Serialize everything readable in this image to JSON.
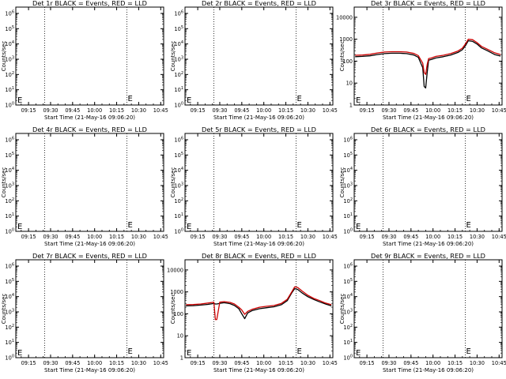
{
  "chart_data": [
    {
      "panel": "det-1r",
      "type": "line",
      "title": "Det 1r BLACK = Events, RED = LLD",
      "xlabel": "Start Time (21-May-16 09:06:20)",
      "ylabel": "Counts/sec",
      "yscale": "log",
      "ylim": [
        1,
        1000000
      ],
      "ytick_labels": [
        "10^0",
        "10^1",
        "10^2",
        "10^3",
        "10^4",
        "10^5",
        "10^6"
      ],
      "xtick_labels": [
        "09:15",
        "09:30",
        "09:45",
        "10:00",
        "10:15",
        "10:30",
        "10:45"
      ],
      "dotted_lines_at": [
        "09:26",
        "10:22"
      ],
      "markers": [
        "E",
        "E"
      ],
      "series": []
    },
    {
      "panel": "det-2r",
      "type": "line",
      "title": "Det 2r BLACK = Events, RED = LLD",
      "xlabel": "Start Time (21-May-16 09:06:20)",
      "ylabel": "Counts/sec",
      "yscale": "log",
      "ylim": [
        1,
        1000000
      ],
      "ytick_labels": [
        "10^0",
        "10^1",
        "10^2",
        "10^3",
        "10^4",
        "10^5",
        "10^6"
      ],
      "xtick_labels": [
        "09:15",
        "09:30",
        "09:45",
        "10:00",
        "10:15",
        "10:30",
        "10:45"
      ],
      "dotted_lines_at": [
        "09:26",
        "10:22"
      ],
      "markers": [
        "E",
        "E"
      ],
      "series": []
    },
    {
      "panel": "det-3r",
      "type": "line",
      "title": "Det 3r BLACK = Events, RED = LLD",
      "xlabel": "Start Time (21-May-16 09:06:20)",
      "ylabel": "Counts/sec",
      "yscale": "log",
      "ylim": [
        1,
        15000
      ],
      "ytick_labels": [
        "1",
        "10",
        "100",
        "1000",
        "10000"
      ],
      "xtick_labels": [
        "09:15",
        "09:30",
        "09:45",
        "10:00",
        "10:15",
        "10:30",
        "10:45"
      ],
      "dotted_lines_at": [
        "09:26",
        "10:22"
      ],
      "markers": [
        "E",
        "E"
      ],
      "series": [
        {
          "color": "#000000",
          "stroke_width": 1.3,
          "x": [
            "09:07",
            "09:12",
            "09:17",
            "09:22",
            "09:27",
            "09:32",
            "09:37",
            "09:42",
            "09:47",
            "09:50",
            "09:53",
            "09:54",
            "09:55",
            "09:56",
            "09:57",
            "09:59",
            "10:02",
            "10:07",
            "10:12",
            "10:17",
            "10:20",
            "10:22",
            "10:24",
            "10:27",
            "10:30",
            "10:33",
            "10:37",
            "10:42",
            "10:46"
          ],
          "y": [
            160,
            165,
            175,
            200,
            220,
            230,
            230,
            220,
            190,
            150,
            50,
            7,
            6,
            30,
            110,
            120,
            140,
            160,
            190,
            250,
            330,
            500,
            850,
            800,
            600,
            400,
            300,
            200,
            170
          ]
        },
        {
          "color": "#cc0000",
          "stroke_width": 1.3,
          "x": [
            "09:07",
            "09:12",
            "09:17",
            "09:22",
            "09:27",
            "09:32",
            "09:37",
            "09:42",
            "09:47",
            "09:50",
            "09:53",
            "09:54",
            "09:55",
            "09:56",
            "09:57",
            "09:59",
            "10:02",
            "10:07",
            "10:12",
            "10:17",
            "10:20",
            "10:22",
            "10:24",
            "10:27",
            "10:30",
            "10:33",
            "10:37",
            "10:42",
            "10:46"
          ],
          "y": [
            185,
            190,
            205,
            235,
            260,
            270,
            270,
            260,
            225,
            180,
            80,
            30,
            25,
            70,
            130,
            140,
            165,
            185,
            220,
            290,
            390,
            600,
            1000,
            950,
            700,
            470,
            350,
            240,
            200
          ]
        }
      ]
    },
    {
      "panel": "det-4r",
      "type": "line",
      "title": "Det 4r BLACK = Events, RED = LLD",
      "xlabel": "Start Time (21-May-16 09:06:20)",
      "ylabel": "Counts/sec",
      "yscale": "log",
      "ylim": [
        1,
        1000000
      ],
      "ytick_labels": [
        "10^0",
        "10^1",
        "10^2",
        "10^3",
        "10^4",
        "10^5",
        "10^6"
      ],
      "xtick_labels": [
        "09:15",
        "09:30",
        "09:45",
        "10:00",
        "10:15",
        "10:30",
        "10:45"
      ],
      "dotted_lines_at": [
        "09:26",
        "10:22"
      ],
      "markers": [
        "E",
        "E"
      ],
      "series": []
    },
    {
      "panel": "det-5r",
      "type": "line",
      "title": "Det 5r BLACK = Events, RED = LLD",
      "xlabel": "Start Time (21-May-16 09:06:20)",
      "ylabel": "Counts/sec",
      "yscale": "log",
      "ylim": [
        1,
        1000000
      ],
      "ytick_labels": [
        "10^0",
        "10^1",
        "10^2",
        "10^3",
        "10^4",
        "10^5",
        "10^6"
      ],
      "xtick_labels": [
        "09:15",
        "09:30",
        "09:45",
        "10:00",
        "10:15",
        "10:30",
        "10:45"
      ],
      "dotted_lines_at": [
        "09:26",
        "10:22"
      ],
      "markers": [
        "E",
        "E"
      ],
      "series": []
    },
    {
      "panel": "det-6r",
      "type": "line",
      "title": "Det 6r BLACK = Events, RED = LLD",
      "xlabel": "Start Time (21-May-16 09:06:20)",
      "ylabel": "Counts/sec",
      "yscale": "log",
      "ylim": [
        1,
        1000000
      ],
      "ytick_labels": [
        "10^0",
        "10^1",
        "10^2",
        "10^3",
        "10^4",
        "10^5",
        "10^6"
      ],
      "xtick_labels": [
        "09:15",
        "09:30",
        "09:45",
        "10:00",
        "10:15",
        "10:30",
        "10:45"
      ],
      "dotted_lines_at": [
        "09:26",
        "10:22"
      ],
      "markers": [
        "E",
        "E"
      ],
      "series": []
    },
    {
      "panel": "det-7r",
      "type": "line",
      "title": "Det 7r BLACK = Events, RED = LLD",
      "xlabel": "Start Time (21-May-16 09:06:20)",
      "ylabel": "Counts/sec",
      "yscale": "log",
      "ylim": [
        1,
        1000000
      ],
      "ytick_labels": [
        "10^0",
        "10^1",
        "10^2",
        "10^3",
        "10^4",
        "10^5",
        "10^6"
      ],
      "xtick_labels": [
        "09:15",
        "09:30",
        "09:45",
        "10:00",
        "10:15",
        "10:30",
        "10:45"
      ],
      "dotted_lines_at": [
        "09:26",
        "10:22"
      ],
      "markers": [
        "E",
        "E"
      ],
      "series": []
    },
    {
      "panel": "det-8r",
      "type": "line",
      "title": "Det 8r BLACK = Events, RED = LLD",
      "xlabel": "Start Time (21-May-16 09:06:20)",
      "ylabel": "Counts/sec",
      "yscale": "log",
      "ylim": [
        1,
        15000
      ],
      "ytick_labels": [
        "1",
        "10",
        "100",
        "1000",
        "10000"
      ],
      "xtick_labels": [
        "09:15",
        "09:30",
        "09:45",
        "10:00",
        "10:15",
        "10:30",
        "10:45"
      ],
      "dotted_lines_at": [
        "09:26",
        "10:22"
      ],
      "markers": [
        "E",
        "E"
      ],
      "series": [
        {
          "color": "#000000",
          "stroke_width": 1.3,
          "x": [
            "09:07",
            "09:12",
            "09:17",
            "09:22",
            "09:25",
            "09:26",
            "09:27",
            "09:28",
            "09:30",
            "09:33",
            "09:37",
            "09:40",
            "09:43",
            "09:45",
            "09:47",
            "09:49",
            "09:52",
            "09:57",
            "10:02",
            "10:07",
            "10:12",
            "10:16",
            "10:19",
            "10:21",
            "10:23",
            "10:26",
            "10:30",
            "10:34",
            "10:38",
            "10:42",
            "10:46"
          ],
          "y": [
            230,
            235,
            250,
            270,
            290,
            300,
            280,
            280,
            300,
            320,
            290,
            240,
            170,
            100,
            60,
            110,
            140,
            170,
            190,
            210,
            260,
            400,
            900,
            1400,
            1300,
            900,
            600,
            450,
            350,
            280,
            230
          ]
        },
        {
          "color": "#cc0000",
          "stroke_width": 1.3,
          "x": [
            "09:07",
            "09:12",
            "09:17",
            "09:22",
            "09:25",
            "09:26",
            "09:27",
            "09:28",
            "09:30",
            "09:33",
            "09:37",
            "09:40",
            "09:43",
            "09:45",
            "09:47",
            "09:49",
            "09:52",
            "09:57",
            "10:02",
            "10:07",
            "10:12",
            "10:16",
            "10:19",
            "10:21",
            "10:23",
            "10:26",
            "10:30",
            "10:34",
            "10:38",
            "10:42",
            "10:46"
          ],
          "y": [
            260,
            265,
            280,
            310,
            330,
            340,
            55,
            55,
            340,
            360,
            330,
            280,
            200,
            150,
            95,
            130,
            160,
            200,
            220,
            240,
            300,
            460,
            1000,
            1700,
            1600,
            1100,
            700,
            500,
            400,
            310,
            260
          ]
        }
      ]
    },
    {
      "panel": "det-9r",
      "type": "line",
      "title": "Det 9r BLACK = Events, RED = LLD",
      "xlabel": "Start Time (21-May-16 09:06:20)",
      "ylabel": "Counts/sec",
      "yscale": "log",
      "ylim": [
        1,
        1000000
      ],
      "ytick_labels": [
        "10^0",
        "10^1",
        "10^2",
        "10^3",
        "10^4",
        "10^5",
        "10^6"
      ],
      "xtick_labels": [
        "09:15",
        "09:30",
        "09:45",
        "10:00",
        "10:15",
        "10:30",
        "10:45"
      ],
      "dotted_lines_at": [
        "09:26",
        "10:22"
      ],
      "markers": [
        "E",
        "E"
      ],
      "series": []
    }
  ]
}
